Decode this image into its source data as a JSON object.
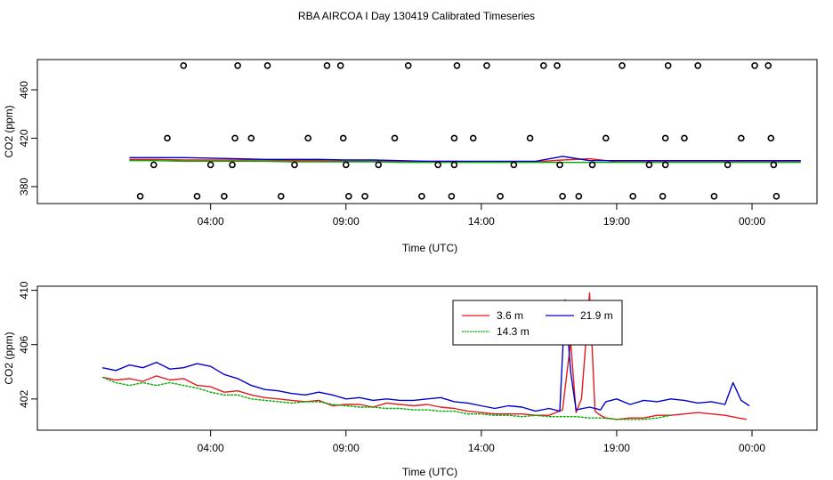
{
  "title": "RBA AIRCOA I  Day 130419  Calibrated Timeseries",
  "colors": {
    "s1": "#e41a1c",
    "s2": "#0000cc",
    "s3": "#00aa00",
    "axis": "#000000"
  },
  "chart_data": [
    {
      "type": "line",
      "xlabel": "Time (UTC)",
      "ylabel": "CO2 (ppm)",
      "xlim": [
        -2.4,
        26.4
      ],
      "ylim": [
        366,
        485
      ],
      "xticks": [
        4,
        9,
        14,
        19,
        24
      ],
      "xtick_labels": [
        "04:00",
        "09:00",
        "14:00",
        "19:00",
        "00:00"
      ],
      "yticks": [
        380,
        420,
        460
      ],
      "ytick_labels": [
        "380",
        "420",
        "460"
      ],
      "series": [
        {
          "name": "3.6 m",
          "color": "#e41a1c",
          "values": [
            402.5,
            402.5,
            402,
            402,
            402,
            402,
            401.5,
            401.5,
            401,
            401,
            401,
            401,
            401,
            400.5,
            400.5,
            400.5,
            402,
            403,
            400.5,
            400.5,
            400.5,
            400.5,
            400.5,
            400.5,
            400.5,
            400.5
          ]
        },
        {
          "name": "21.9 m",
          "color": "#0000cc",
          "values": [
            404,
            404,
            404,
            403.5,
            403,
            402.5,
            402.5,
            402.5,
            402,
            402,
            401.5,
            401,
            401,
            401,
            401,
            401,
            405,
            401.5,
            401.5,
            401.5,
            401.5,
            401.5,
            401.5,
            401.5,
            401.5,
            401.5
          ]
        },
        {
          "name": "14.3 m",
          "color": "#00aa00",
          "values": [
            401.5,
            401.5,
            401,
            401,
            401,
            401,
            400.5,
            400.5,
            400.5,
            400.5,
            400,
            400,
            400,
            400,
            400,
            400,
            400,
            400,
            400,
            400,
            400,
            400,
            400,
            400,
            400,
            400
          ]
        }
      ],
      "x": [
        1,
        2,
        3,
        4,
        5,
        6,
        7,
        8,
        9,
        10,
        11,
        12,
        13,
        14,
        15,
        16,
        17,
        18,
        19,
        20,
        21,
        22,
        23,
        24,
        25,
        25.8
      ],
      "cal_points": [
        {
          "x": 1.4,
          "y": 372
        },
        {
          "x": 1.9,
          "y": 398
        },
        {
          "x": 2.4,
          "y": 420
        },
        {
          "x": 3.0,
          "y": 480
        },
        {
          "x": 3.5,
          "y": 372
        },
        {
          "x": 4.0,
          "y": 398
        },
        {
          "x": 4.5,
          "y": 372
        },
        {
          "x": 4.8,
          "y": 398
        },
        {
          "x": 4.9,
          "y": 420
        },
        {
          "x": 5.0,
          "y": 480
        },
        {
          "x": 5.5,
          "y": 420
        },
        {
          "x": 6.1,
          "y": 480
        },
        {
          "x": 6.6,
          "y": 372
        },
        {
          "x": 7.1,
          "y": 398
        },
        {
          "x": 7.6,
          "y": 420
        },
        {
          "x": 8.3,
          "y": 480
        },
        {
          "x": 8.8,
          "y": 480
        },
        {
          "x": 8.9,
          "y": 420
        },
        {
          "x": 9.0,
          "y": 398
        },
        {
          "x": 9.1,
          "y": 372
        },
        {
          "x": 9.7,
          "y": 372
        },
        {
          "x": 10.2,
          "y": 398
        },
        {
          "x": 10.8,
          "y": 420
        },
        {
          "x": 11.3,
          "y": 480
        },
        {
          "x": 11.8,
          "y": 372
        },
        {
          "x": 12.4,
          "y": 398
        },
        {
          "x": 12.9,
          "y": 372
        },
        {
          "x": 13.0,
          "y": 398
        },
        {
          "x": 13.0,
          "y": 420
        },
        {
          "x": 13.1,
          "y": 480
        },
        {
          "x": 13.7,
          "y": 420
        },
        {
          "x": 14.2,
          "y": 480
        },
        {
          "x": 14.7,
          "y": 372
        },
        {
          "x": 15.2,
          "y": 398
        },
        {
          "x": 15.8,
          "y": 420
        },
        {
          "x": 16.3,
          "y": 480
        },
        {
          "x": 16.8,
          "y": 480
        },
        {
          "x": 16.9,
          "y": 398
        },
        {
          "x": 17.0,
          "y": 372
        },
        {
          "x": 17.6,
          "y": 372
        },
        {
          "x": 18.1,
          "y": 398
        },
        {
          "x": 18.6,
          "y": 420
        },
        {
          "x": 19.2,
          "y": 480
        },
        {
          "x": 19.6,
          "y": 372
        },
        {
          "x": 20.2,
          "y": 398
        },
        {
          "x": 20.7,
          "y": 372
        },
        {
          "x": 20.8,
          "y": 398
        },
        {
          "x": 20.8,
          "y": 420
        },
        {
          "x": 20.9,
          "y": 480
        },
        {
          "x": 21.5,
          "y": 420
        },
        {
          "x": 22.0,
          "y": 480
        },
        {
          "x": 22.6,
          "y": 372
        },
        {
          "x": 23.1,
          "y": 398
        },
        {
          "x": 23.6,
          "y": 420
        },
        {
          "x": 24.1,
          "y": 480
        },
        {
          "x": 24.6,
          "y": 480
        },
        {
          "x": 24.7,
          "y": 420
        },
        {
          "x": 24.8,
          "y": 398
        },
        {
          "x": 24.9,
          "y": 372
        }
      ]
    },
    {
      "type": "line",
      "xlabel": "Time (UTC)",
      "ylabel": "CO2 (ppm)",
      "xlim": [
        -2.4,
        26.4
      ],
      "ylim": [
        399.7,
        410.3
      ],
      "xticks": [
        4,
        9,
        14,
        19,
        24
      ],
      "xtick_labels": [
        "04:00",
        "09:00",
        "14:00",
        "19:00",
        "00:00"
      ],
      "yticks": [
        402,
        406,
        410
      ],
      "ytick_labels": [
        "402",
        "406",
        "410"
      ],
      "legend": {
        "position": "top-right",
        "entries": [
          "3.6 m",
          "21.9 m",
          "14.3 m"
        ]
      },
      "series": [
        {
          "name": "3.6 m",
          "color": "#e41a1c",
          "x": [
            0.0,
            0.5,
            1.0,
            1.5,
            2.0,
            2.5,
            3.0,
            3.5,
            4.0,
            4.5,
            5.0,
            5.5,
            6.0,
            6.5,
            7.0,
            7.5,
            8.0,
            8.5,
            9.0,
            9.5,
            10.0,
            10.5,
            11.0,
            11.5,
            12.0,
            12.5,
            13.0,
            13.5,
            14.0,
            14.5,
            15.0,
            15.5,
            16.0,
            16.5,
            17.0,
            17.3,
            17.5,
            17.7,
            18.0,
            18.2,
            18.4,
            18.6,
            19.0,
            19.5,
            20.0,
            20.5,
            21.0,
            21.5,
            22.0,
            22.5,
            23.0,
            23.5,
            23.8
          ],
          "y": [
            403.6,
            403.4,
            403.5,
            403.3,
            403.7,
            403.4,
            403.5,
            403.0,
            402.9,
            402.5,
            402.6,
            402.3,
            402.1,
            402.0,
            401.9,
            401.8,
            401.9,
            401.5,
            401.6,
            401.6,
            401.4,
            401.7,
            401.6,
            401.5,
            401.6,
            401.4,
            401.3,
            401.1,
            401.0,
            400.9,
            400.9,
            400.9,
            400.8,
            400.8,
            401.2,
            406.2,
            401.0,
            402.0,
            409.8,
            401.1,
            400.8,
            400.6,
            400.5,
            400.6,
            400.6,
            400.8,
            400.8,
            400.9,
            401.0,
            400.9,
            400.8,
            400.6,
            400.5
          ]
        },
        {
          "name": "21.9 m",
          "color": "#0000cc",
          "x": [
            0.0,
            0.5,
            1.0,
            1.5,
            2.0,
            2.5,
            3.0,
            3.5,
            4.0,
            4.5,
            5.0,
            5.5,
            6.0,
            6.5,
            7.0,
            7.5,
            8.0,
            8.5,
            9.0,
            9.5,
            10.0,
            10.5,
            11.0,
            11.5,
            12.0,
            12.5,
            13.0,
            13.5,
            14.0,
            14.5,
            15.0,
            15.5,
            16.0,
            16.5,
            16.9,
            17.1,
            17.3,
            17.5,
            18.0,
            18.4,
            18.6,
            19.0,
            19.5,
            20.0,
            20.5,
            21.0,
            21.5,
            22.0,
            22.5,
            23.0,
            23.3,
            23.6,
            23.9
          ],
          "y": [
            404.3,
            404.1,
            404.5,
            404.3,
            404.7,
            404.2,
            404.3,
            404.6,
            404.4,
            403.8,
            403.5,
            403.0,
            402.7,
            402.6,
            402.4,
            402.3,
            402.5,
            402.3,
            402.0,
            402.1,
            401.9,
            402.0,
            401.9,
            401.9,
            402.0,
            402.1,
            401.8,
            401.7,
            401.5,
            401.3,
            401.5,
            401.4,
            401.1,
            401.3,
            401.1,
            409.3,
            404.0,
            401.2,
            401.4,
            401.2,
            401.8,
            402.0,
            401.6,
            401.9,
            401.8,
            402.0,
            401.9,
            401.7,
            401.8,
            401.6,
            403.2,
            401.9,
            401.5
          ]
        },
        {
          "name": "14.3 m",
          "color": "#00aa00",
          "x": [
            0.0,
            0.5,
            1.0,
            1.5,
            2.0,
            2.5,
            3.0,
            3.5,
            4.0,
            4.5,
            5.0,
            5.5,
            6.0,
            6.5,
            7.0,
            7.5,
            8.0,
            8.5,
            9.0,
            9.5,
            10.0,
            10.5,
            11.0,
            11.5,
            12.0,
            12.5,
            13.0,
            13.5,
            14.0,
            14.5,
            15.0,
            15.5,
            16.0,
            16.5,
            17.0,
            17.5,
            18.0,
            18.5,
            19.0,
            19.5,
            20.0,
            20.5,
            21.0
          ],
          "y": [
            403.6,
            403.2,
            403.0,
            403.2,
            403.0,
            403.2,
            403.0,
            402.8,
            402.5,
            402.3,
            402.3,
            402.0,
            401.9,
            401.8,
            401.7,
            401.8,
            401.8,
            401.6,
            401.5,
            401.4,
            401.4,
            401.3,
            401.3,
            401.2,
            401.2,
            401.1,
            401.1,
            400.9,
            400.9,
            400.8,
            400.8,
            400.7,
            400.8,
            400.7,
            400.7,
            400.7,
            400.6,
            400.6,
            400.5,
            400.5,
            400.5,
            400.6,
            400.8
          ]
        }
      ]
    }
  ]
}
